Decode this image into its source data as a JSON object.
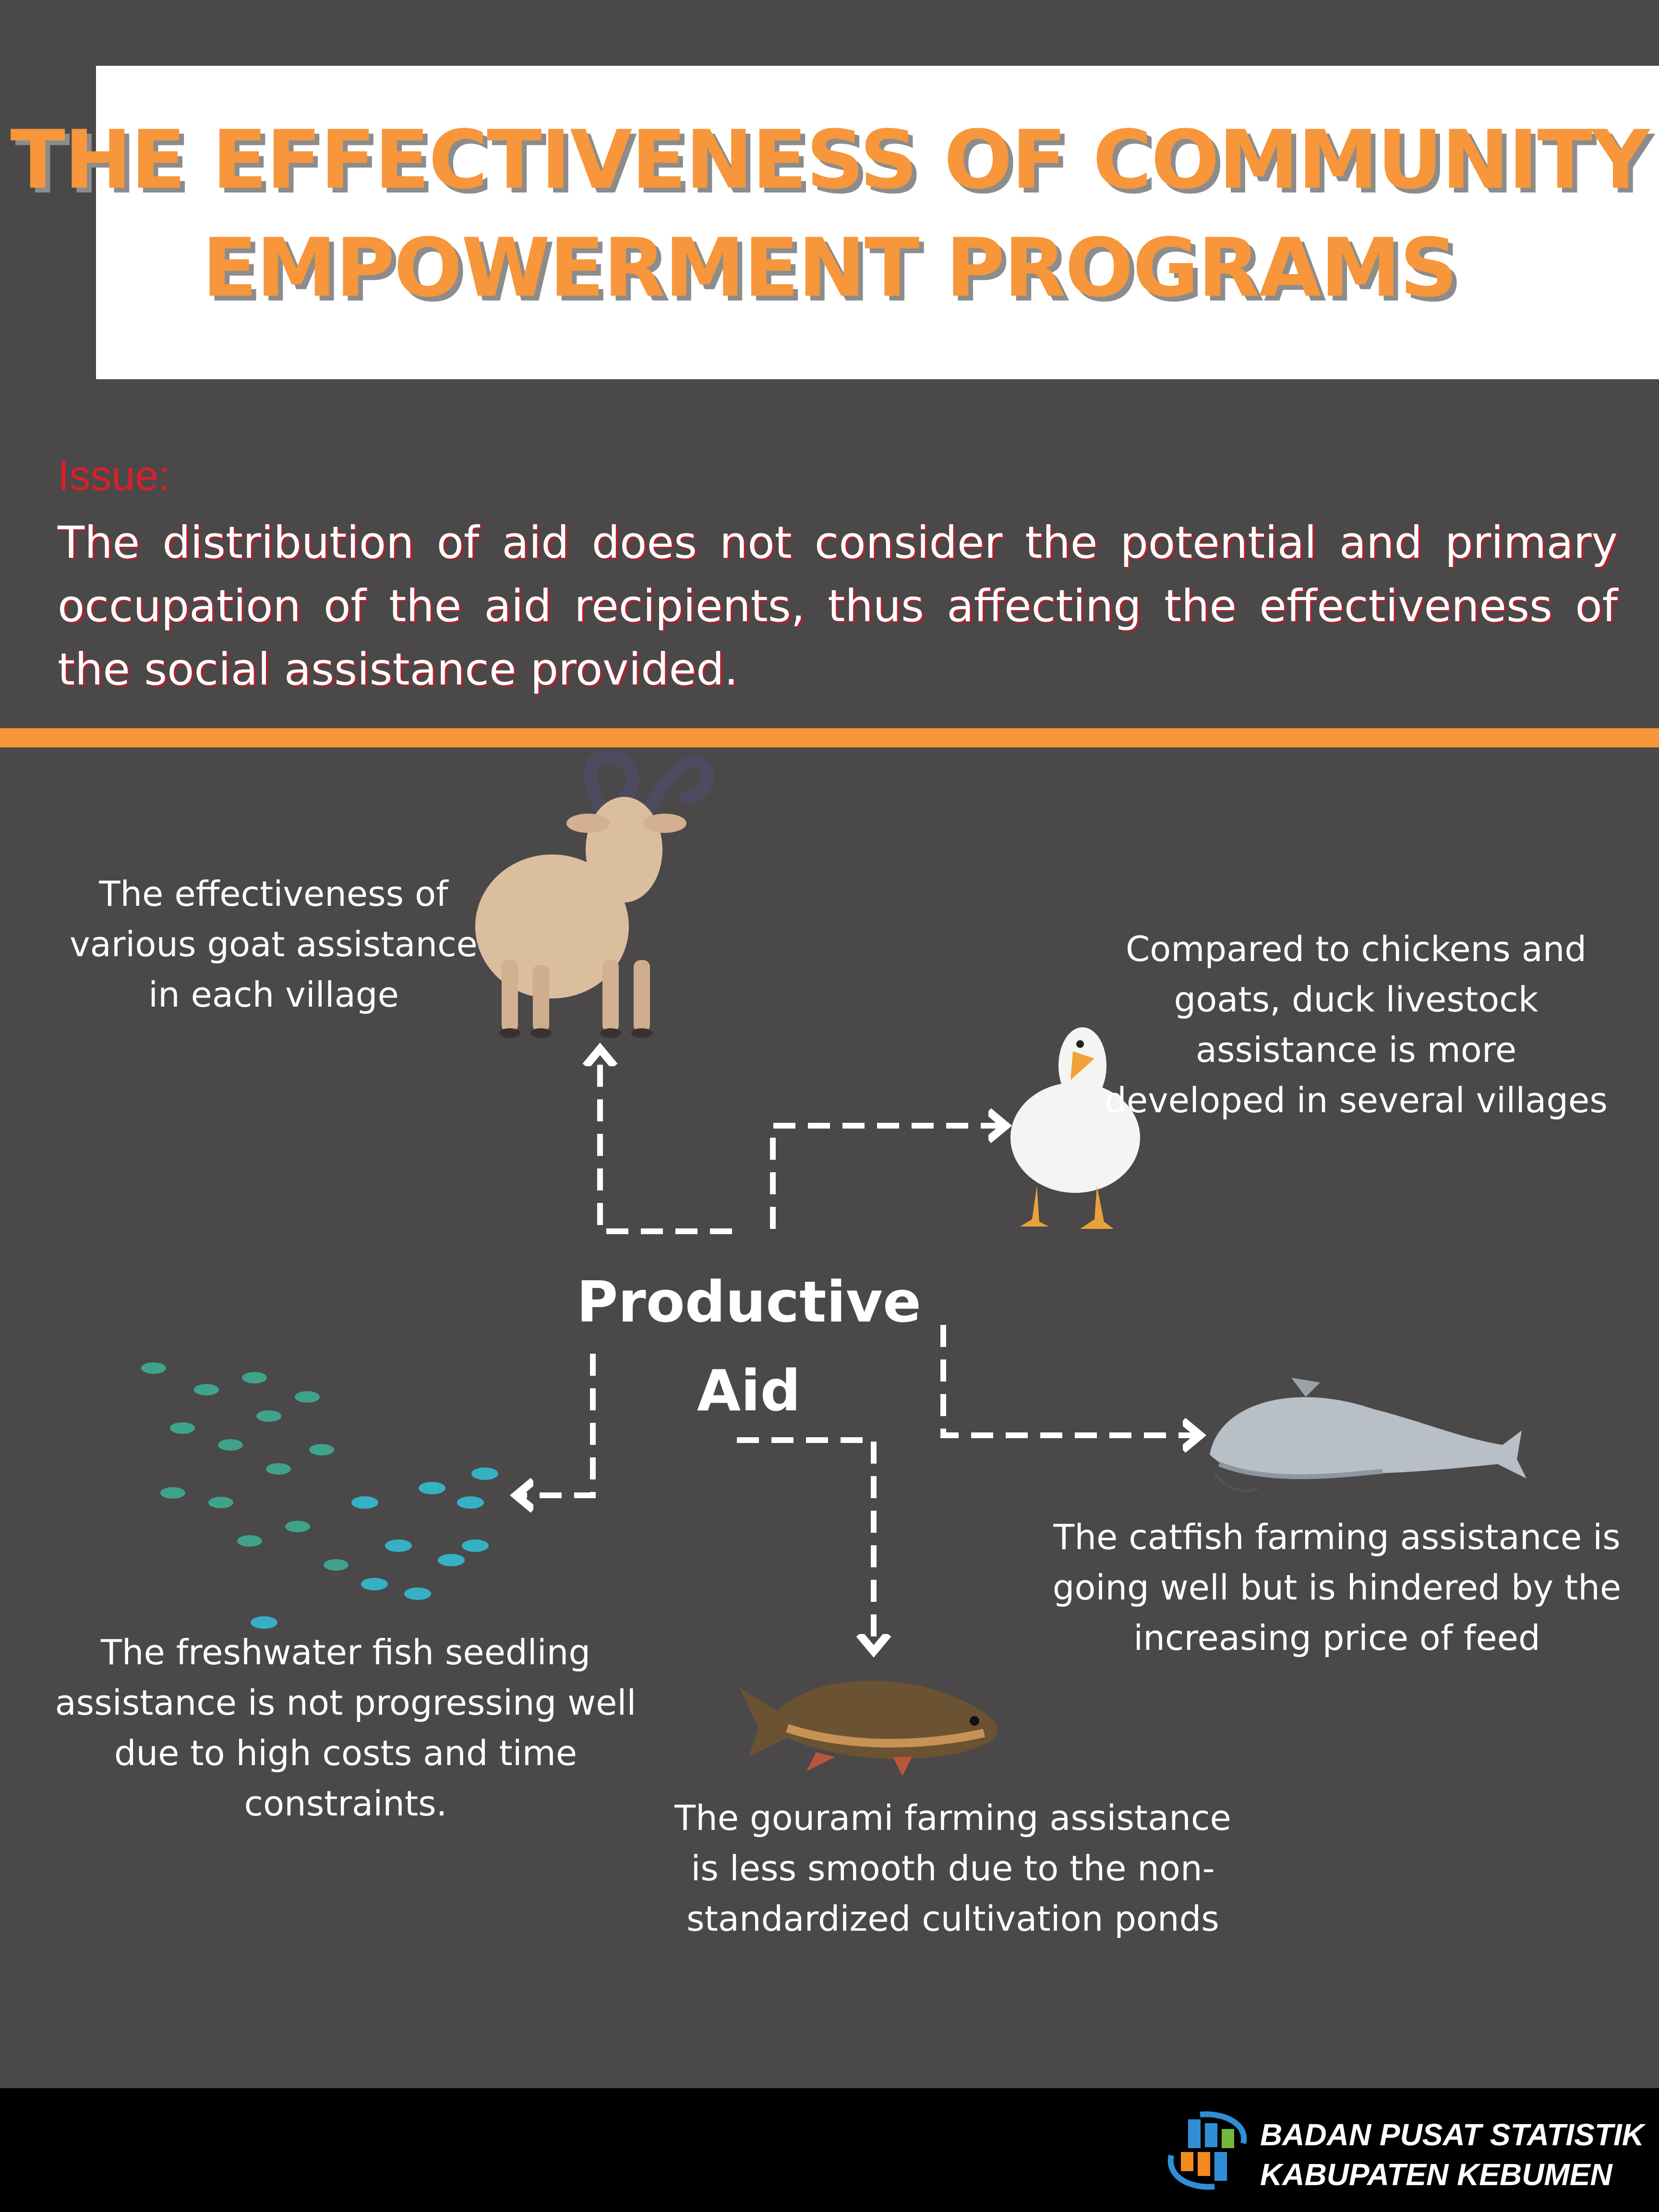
{
  "title": {
    "line1": "THE EFFECTIVENESS OF COMMUNITY",
    "line2": "EMPOWERMENT PROGRAMS"
  },
  "issue": {
    "label": "Issue:",
    "text": "The distribution of aid does not consider the potential and primary occupation of the aid recipients, thus affecting the effectiveness of the social assistance provided."
  },
  "diagram": {
    "center": {
      "line1": "Productive",
      "line2": "Aid"
    },
    "goat": {
      "caption": "The effectiveness of various goat assistance in each village",
      "icon": "goat-icon"
    },
    "duck": {
      "caption": "Compared to chickens and goats, duck livestock assistance is more developed in several villages",
      "icon": "duck-icon"
    },
    "catfish": {
      "caption": "The catfish farming assistance is going well but is hindered by the increasing price of feed",
      "icon": "catfish-icon"
    },
    "freshwater_fish": {
      "caption": "The freshwater fish seedling assistance is not progressing well due to high costs and time constraints.",
      "icon": "fish-school-icon"
    },
    "gourami": {
      "caption": "The gourami farming assistance is less smooth due to the non-standardized cultivation ponds",
      "icon": "gourami-icon"
    }
  },
  "footer": {
    "org_line1": "BADAN PUSAT STATISTIK",
    "org_line2": "KABUPATEN KEBUMEN"
  },
  "colors": {
    "background": "#4a4849",
    "accent_orange": "#f7963a",
    "issue_red": "#d8202a",
    "footer": "#000000"
  }
}
